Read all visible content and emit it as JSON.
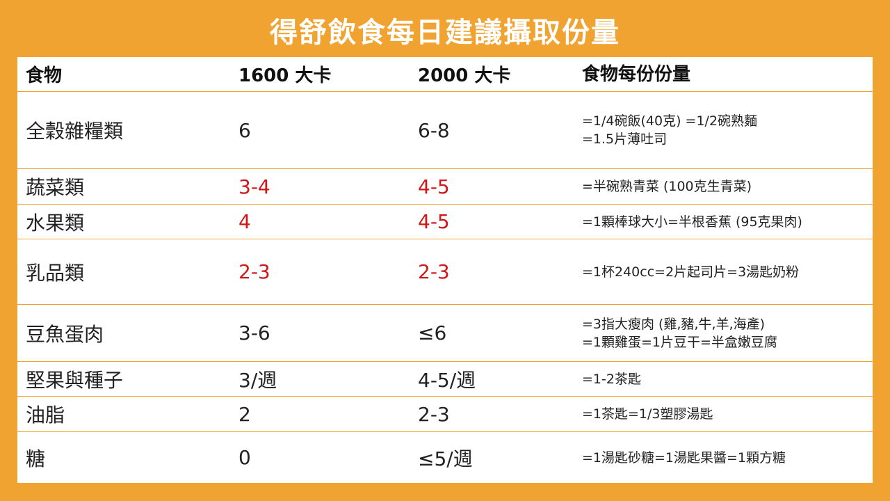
{
  "title": "得舒飲食每日建議攝取份量",
  "header": {
    "food": "食物",
    "kcal1600": "1600 大卡",
    "kcal2000": "2000 大卡",
    "portion": "食物每份份量"
  },
  "rows": [
    {
      "food": "全穀雜糧類",
      "kcal1600": "6",
      "kcal2000": "6-8",
      "portion": "=1/4碗飯(40克) =1/2碗熟麵\n=1.5片薄吐司"
    },
    {
      "food": "蔬菜類",
      "kcal1600": "3-4",
      "kcal2000": "4-5",
      "portion": "=半碗熟青菜 (100克生青菜)"
    },
    {
      "food": "水果類",
      "kcal1600": "4",
      "kcal2000": "4-5",
      "portion": "=1顆棒球大小=半根香蕉 (95克果肉)"
    },
    {
      "food": "乳品類",
      "kcal1600": "2-3",
      "kcal2000": "2-3",
      "portion": "=1杯240cc=2片起司片=3湯匙奶粉"
    },
    {
      "food": "豆魚蛋肉",
      "kcal1600": "3-6",
      "kcal2000": "≤6",
      "portion": "=3指大瘦肉 (雞,豬,牛,羊,海產)\n=1顆雞蛋=1片豆干=半盒嫩豆腐"
    },
    {
      "food": "堅果與種子",
      "kcal1600": "3/週",
      "kcal2000": "4-5/週",
      "portion": "=1-2茶匙"
    },
    {
      "food": "油脂",
      "kcal1600": "2",
      "kcal2000": "2-3",
      "portion": "=1茶匙=1/3塑膠湯匙"
    },
    {
      "food": "糖",
      "kcal1600": "0",
      "kcal2000": "≤5/週",
      "portion": "=1湯匙砂糖=1湯匙果醬=1顆方糖"
    }
  ],
  "colors": {
    "background": "#F0A330",
    "highlight": "#D01818"
  }
}
